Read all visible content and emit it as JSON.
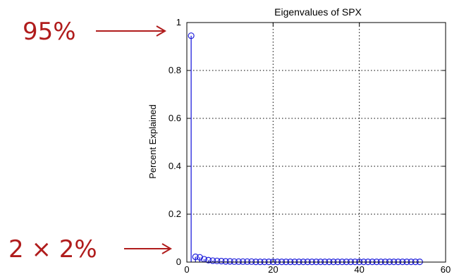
{
  "chart_data": {
    "type": "scatter",
    "style": "stem",
    "title": "Eigenvalues of SPX",
    "xlabel": "",
    "ylabel": "Percent Explained",
    "xlim": [
      0,
      60
    ],
    "ylim": [
      0,
      1
    ],
    "xticks": [
      0,
      20,
      40,
      60
    ],
    "yticks": [
      0,
      0.2,
      0.4,
      0.6,
      0.8,
      1
    ],
    "xtick_labels": [
      "0",
      "20",
      "40",
      "60"
    ],
    "ytick_labels": [
      "0",
      "0.2",
      "0.4",
      "0.6",
      "0.8",
      "1"
    ],
    "grid": true,
    "marker_color": "#1f1fdc",
    "x": [
      1,
      2,
      3,
      4,
      5,
      6,
      7,
      8,
      9,
      10,
      11,
      12,
      13,
      14,
      15,
      16,
      17,
      18,
      19,
      20,
      21,
      22,
      23,
      24,
      25,
      26,
      27,
      28,
      29,
      30,
      31,
      32,
      33,
      34,
      35,
      36,
      37,
      38,
      39,
      40,
      41,
      42,
      43,
      44,
      45,
      46,
      47,
      48,
      49,
      50,
      51,
      52,
      53,
      54
    ],
    "y": [
      0.945,
      0.022,
      0.02,
      0.012,
      0.008,
      0.006,
      0.005,
      0.004,
      0.003,
      0.003,
      0.002,
      0.002,
      0.002,
      0.002,
      0.002,
      0.001,
      0.001,
      0.001,
      0.001,
      0.001,
      0.001,
      0.001,
      0.001,
      0.001,
      0.001,
      0.001,
      0.001,
      0.001,
      0.001,
      0.001,
      0.001,
      0.001,
      0.001,
      0.001,
      0.001,
      0.001,
      0.001,
      0.001,
      0.001,
      0.001,
      0.001,
      0.001,
      0.001,
      0.001,
      0.001,
      0.001,
      0.001,
      0.001,
      0.001,
      0.001,
      0.001,
      0.001,
      0.001,
      0.001
    ]
  },
  "annotations": {
    "top_label": "95%",
    "bottom_label": "2 × 2%",
    "color": "#b01c1c"
  }
}
